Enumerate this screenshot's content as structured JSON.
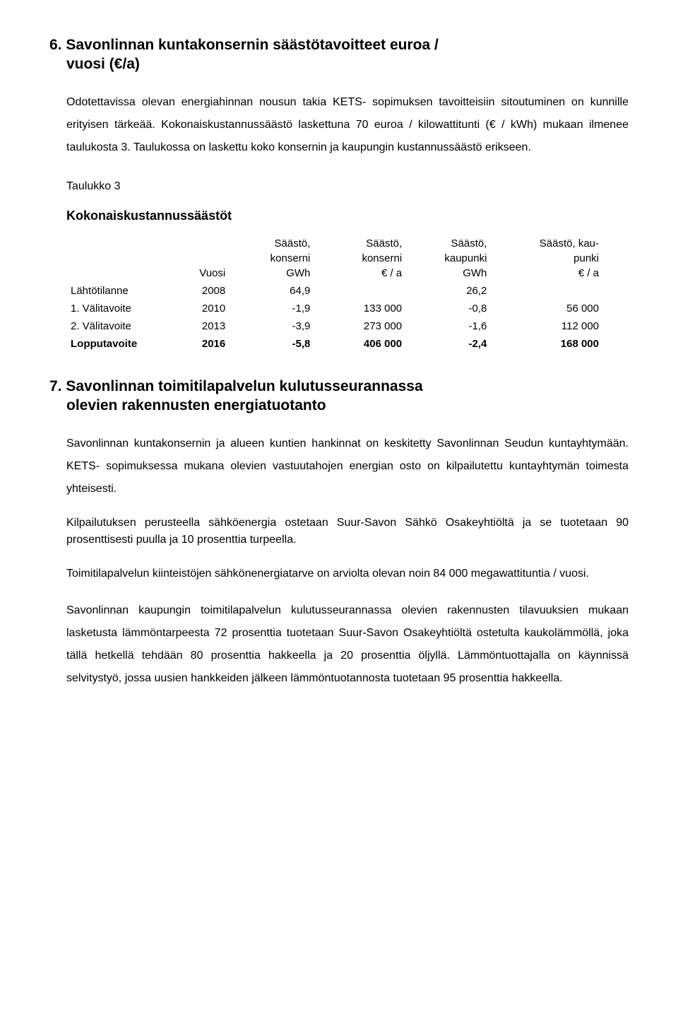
{
  "section6": {
    "heading_line1": "6. Savonlinnan kuntakonsernin säästötavoitteet euroa /",
    "heading_line2": "vuosi (€/a)",
    "para1": "Odotettavissa olevan energiahinnan nousun takia KETS- sopimuksen tavoitteisiin sitoutuminen on kunnille erityisen tärkeää. Kokonaiskustannussäästö laskettuna 70 euroa / kilowattitunti (€ / kWh) mukaan ilmenee taulukosta 3. Taulukossa on laskettu koko konsernin ja kaupungin kustannussäästö erikseen.",
    "table_caption": "Taulukko 3",
    "table_title": "Kokonaiskustannussäästöt",
    "headers": {
      "vuosi": "Vuosi",
      "konserni_gwh_l1": "Säästö,",
      "konserni_gwh_l2": "konserni",
      "konserni_gwh_l3": "GWh",
      "konserni_eur_l1": "Säästö,",
      "konserni_eur_l2": "konserni",
      "konserni_eur_l3": "€ / a",
      "kaupunki_gwh_l1": "Säästö,",
      "kaupunki_gwh_l2": "kaupunki",
      "kaupunki_gwh_l3": "GWh",
      "kaupunki_eur_l1": "Säästö, kau-",
      "kaupunki_eur_l2": "punki",
      "kaupunki_eur_l3": "€ / a"
    },
    "rows": [
      {
        "label": "Lähtötilanne",
        "year": "2008",
        "k_gwh": "64,9",
        "k_eur": "",
        "kp_gwh": "26,2",
        "kp_eur": ""
      },
      {
        "label": "1. Välitavoite",
        "year": "2010",
        "k_gwh": "-1,9",
        "k_eur": "133 000",
        "kp_gwh": "-0,8",
        "kp_eur": "56 000"
      },
      {
        "label": "2. Välitavoite",
        "year": "2013",
        "k_gwh": "-3,9",
        "k_eur": "273 000",
        "kp_gwh": "-1,6",
        "kp_eur": "112 000"
      },
      {
        "label": "Lopputavoite",
        "year": "2016",
        "k_gwh": "-5,8",
        "k_eur": "406 000",
        "kp_gwh": "-2,4",
        "kp_eur": "168 000"
      }
    ]
  },
  "section7": {
    "heading_line1": "7. Savonlinnan toimitilapalvelun kulutusseurannassa",
    "heading_line2": "olevien rakennusten energiatuotanto",
    "para1": "Savonlinnan kuntakonsernin ja alueen kuntien hankinnat on keskitetty Savonlinnan Seudun kuntayhtymään. KETS- sopimuksessa mukana olevien vastuutahojen energian osto on kilpailutettu kuntayhtymän toimesta yhteisesti.",
    "para2": "Kilpailutuksen perusteella sähköenergia ostetaan Suur-Savon Sähkö Osakeyhtiöltä ja se tuotetaan 90 prosenttisesti puulla ja 10 prosenttia turpeella.",
    "para3": "Toimitilapalvelun kiinteistöjen sähkönenergiatarve on arviolta olevan noin 84 000 megawattituntia / vuosi.",
    "para4": "Savonlinnan kaupungin toimitilapalvelun kulutusseurannassa olevien rakennusten tilavuuksien mukaan lasketusta lämmöntarpeesta 72 prosenttia tuotetaan Suur-Savon Osakeyhtiöltä ostetulta kaukolämmöllä, joka tällä hetkellä tehdään 80 prosenttia hakkeella ja 20 prosenttia öljyllä. Lämmöntuottajalla on käynnissä selvitystyö, jossa uusien hankkeiden jälkeen lämmöntuotannosta tuotetaan 95 prosenttia hakkeella."
  }
}
